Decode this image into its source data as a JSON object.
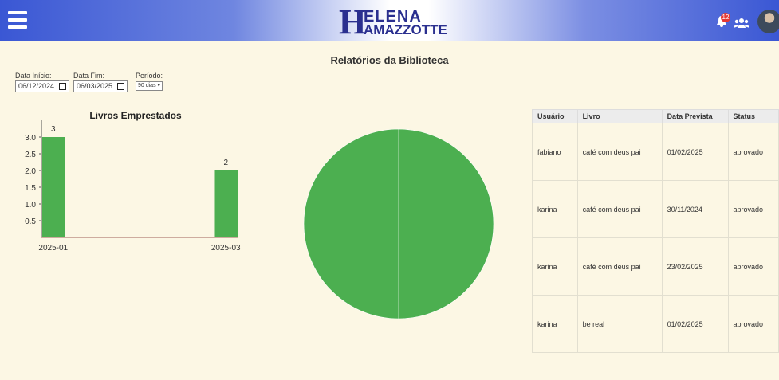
{
  "header": {
    "logo": {
      "initial": "H",
      "line1": "ELENA",
      "line2": "AMAZZOTTE"
    },
    "notification_count": "12"
  },
  "page_title": "Relatórios da Biblioteca",
  "filters": {
    "start_label": "Data Início:",
    "start_value": "06/12/2024",
    "end_label": "Data Fim:",
    "end_value": "06/03/2025",
    "period_label": "Período:",
    "period_value": "90 dias"
  },
  "chart_data": [
    {
      "type": "bar",
      "title": "Livros Emprestados",
      "categories": [
        "2025-01",
        "2025-03"
      ],
      "values": [
        3,
        2
      ],
      "color": "#4caf50",
      "ylim": [
        0,
        3.5
      ],
      "yticks": [
        0.5,
        {
          "value": 1,
          "label": "1.0"
        },
        1.5,
        {
          "value": 2,
          "label": "2.0"
        },
        2.5,
        {
          "value": 3,
          "label": "3.0"
        }
      ]
    },
    {
      "type": "pie",
      "values": [
        50,
        50
      ],
      "color": "#4caf50"
    }
  ],
  "table": {
    "columns": [
      "Usuário",
      "Livro",
      "Data Prevista",
      "Status"
    ],
    "rows": [
      [
        "fabiano",
        "café com deus pai",
        "01/02/2025",
        "aprovado"
      ],
      [
        "karina",
        "café com deus pai",
        "30/11/2024",
        "aprovado"
      ],
      [
        "karina",
        "café com deus pai",
        "23/02/2025",
        "aprovado"
      ],
      [
        "karina",
        "be real",
        "01/02/2025",
        "aprovado"
      ]
    ]
  }
}
